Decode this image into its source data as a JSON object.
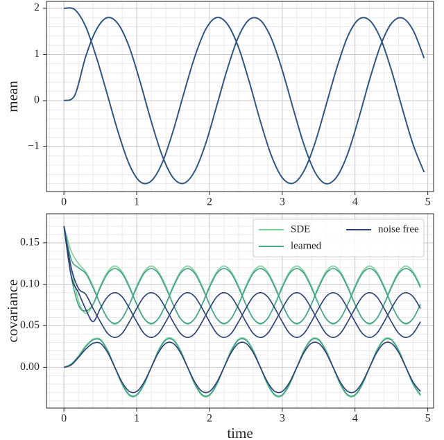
{
  "chart_data": [
    {
      "type": "line",
      "ylabel": "mean",
      "x": [
        0,
        0.15,
        0.3,
        0.45,
        0.6,
        0.75,
        0.9,
        1.05,
        1.2,
        1.35,
        1.5,
        1.65,
        1.8,
        1.95,
        2.1,
        2.25,
        2.4,
        2.55,
        2.7,
        2.85,
        3,
        3.15,
        3.3,
        3.45,
        3.6,
        3.75,
        3.9,
        4.05,
        4.2,
        4.35,
        4.5,
        4.65,
        4.8,
        4.95
      ],
      "series": [
        {
          "color": "#2f5680",
          "values": [
            0,
            0.12,
            0.96,
            1.55,
            1.8,
            1.65,
            1.15,
            0.39,
            -0.45,
            -1.19,
            -1.67,
            -1.79,
            -1.52,
            -0.92,
            -0.11,
            0.71,
            1.39,
            1.76,
            1.74,
            1.35,
            0.66,
            -0.17,
            -0.96,
            -1.55,
            -1.8,
            -1.65,
            -1.15,
            -0.39,
            0.45,
            1.19,
            1.67,
            1.79,
            1.52,
            0.92
          ]
        },
        {
          "color": "#2f5680",
          "values": [
            2,
            1.97,
            1.6,
            0.92,
            0.11,
            -0.71,
            -1.39,
            -1.76,
            -1.74,
            -1.35,
            -0.66,
            0.17,
            0.96,
            1.55,
            1.8,
            1.65,
            1.15,
            0.39,
            -0.45,
            -1.19,
            -1.67,
            -1.79,
            -1.52,
            -0.92,
            -0.11,
            0.71,
            1.39,
            1.76,
            1.74,
            1.35,
            0.66,
            -0.17,
            -0.96,
            -1.55
          ]
        }
      ],
      "xlim": [
        -0.24,
        5.08
      ],
      "xticks": [
        0,
        1,
        2,
        3,
        4,
        5
      ],
      "ylim": [
        -1.97,
        2.15
      ],
      "yticks": [
        {
          "value": -1,
          "label": "−1"
        },
        0,
        1,
        2
      ],
      "grid": true,
      "minor_grid": true
    },
    {
      "type": "line",
      "ylabel": "covariance",
      "xlabel": "time",
      "x": [
        0,
        0.1,
        0.2,
        0.3,
        0.4,
        0.5,
        0.6,
        0.7,
        0.8,
        0.9,
        1,
        1.1,
        1.2,
        1.3,
        1.4,
        1.5,
        1.6,
        1.7,
        1.8,
        1.9,
        2,
        2.1,
        2.2,
        2.3,
        2.4,
        2.5,
        2.6,
        2.7,
        2.8,
        2.9,
        3,
        3.1,
        3.2,
        3.3,
        3.4,
        3.5,
        3.6,
        3.7,
        3.8,
        3.9,
        4,
        4.1,
        4.2,
        4.3,
        4.4,
        4.5,
        4.6,
        4.7,
        4.8,
        4.9
      ],
      "series": [
        {
          "name": "SDE",
          "color": "#7fd09c",
          "values": [
            [
              0.17,
              0.12,
              0.08,
              0.065,
              0.076,
              0.098,
              0.115,
              0.122,
              0.115,
              0.098,
              0.076,
              0.059,
              0.052,
              0.059,
              0.076,
              0.098,
              0.115,
              0.122,
              0.115,
              0.098,
              0.076,
              0.059,
              0.052,
              0.059,
              0.076,
              0.098,
              0.115,
              0.122,
              0.115,
              0.098,
              0.076,
              0.059,
              0.052,
              0.059,
              0.076,
              0.098,
              0.115,
              0.122,
              0.115,
              0.098,
              0.076,
              0.059,
              0.052,
              0.059,
              0.076,
              0.098,
              0.115,
              0.122,
              0.115,
              0.098
            ],
            [
              0.17,
              0.14,
              0.125,
              0.115,
              0.098,
              0.076,
              0.059,
              0.052,
              0.059,
              0.076,
              0.098,
              0.115,
              0.122,
              0.115,
              0.098,
              0.076,
              0.059,
              0.052,
              0.059,
              0.076,
              0.098,
              0.115,
              0.122,
              0.115,
              0.098,
              0.076,
              0.059,
              0.052,
              0.059,
              0.076,
              0.098,
              0.115,
              0.122,
              0.115,
              0.098,
              0.076,
              0.059,
              0.052,
              0.059,
              0.076,
              0.098,
              0.115,
              0.122,
              0.115,
              0.098,
              0.076,
              0.059,
              0.052,
              0.059,
              0.076
            ],
            [
              0,
              0.004,
              0.014,
              0.026,
              0.034,
              0.034,
              0.021,
              0,
              -0.021,
              -0.034,
              -0.034,
              -0.021,
              0,
              0.021,
              0.034,
              0.034,
              0.021,
              0,
              -0.021,
              -0.034,
              -0.034,
              -0.021,
              0,
              0.021,
              0.034,
              0.034,
              0.021,
              0,
              -0.021,
              -0.034,
              -0.034,
              -0.021,
              0,
              0.021,
              0.034,
              0.034,
              0.021,
              0,
              -0.021,
              -0.034,
              -0.034,
              -0.021,
              0,
              0.021,
              0.034,
              0.034,
              0.021,
              0,
              -0.021,
              -0.034
            ]
          ]
        },
        {
          "name": "learned",
          "color": "#48a28e",
          "values": [
            [
              0.17,
              0.11,
              0.075,
              0.068,
              0.076,
              0.096,
              0.113,
              0.119,
              0.113,
              0.096,
              0.076,
              0.059,
              0.053,
              0.059,
              0.076,
              0.096,
              0.113,
              0.119,
              0.113,
              0.096,
              0.076,
              0.059,
              0.053,
              0.059,
              0.076,
              0.096,
              0.113,
              0.119,
              0.113,
              0.096,
              0.076,
              0.059,
              0.053,
              0.059,
              0.076,
              0.096,
              0.113,
              0.119,
              0.113,
              0.096,
              0.076,
              0.059,
              0.053,
              0.059,
              0.076,
              0.096,
              0.113,
              0.119,
              0.113,
              0.096
            ],
            [
              0.17,
              0.13,
              0.12,
              0.113,
              0.096,
              0.076,
              0.059,
              0.053,
              0.059,
              0.076,
              0.096,
              0.113,
              0.119,
              0.113,
              0.096,
              0.076,
              0.059,
              0.053,
              0.059,
              0.076,
              0.096,
              0.113,
              0.119,
              0.113,
              0.096,
              0.076,
              0.059,
              0.053,
              0.059,
              0.076,
              0.096,
              0.113,
              0.119,
              0.113,
              0.096,
              0.076,
              0.059,
              0.053,
              0.059,
              0.076,
              0.096,
              0.113,
              0.119,
              0.113,
              0.096,
              0.076,
              0.059,
              0.053,
              0.059,
              0.076
            ],
            [
              0,
              0.004,
              0.013,
              0.025,
              0.033,
              0.033,
              0.02,
              0,
              -0.02,
              -0.033,
              -0.033,
              -0.02,
              0,
              0.02,
              0.033,
              0.033,
              0.02,
              0,
              -0.02,
              -0.033,
              -0.033,
              -0.02,
              0,
              0.02,
              0.033,
              0.033,
              0.02,
              0,
              -0.02,
              -0.033,
              -0.033,
              -0.02,
              0,
              0.02,
              0.033,
              0.033,
              0.02,
              0,
              -0.02,
              -0.033,
              -0.033,
              -0.02,
              0,
              0.02,
              0.033,
              0.033,
              0.02,
              0,
              -0.02,
              -0.033
            ]
          ]
        },
        {
          "name": "noise free",
          "color": "#2e4475",
          "values": [
            [
              0.17,
              0.11,
              0.09,
              0.07,
              0.055,
              0.071,
              0.085,
              0.09,
              0.085,
              0.071,
              0.055,
              0.041,
              0.036,
              0.041,
              0.055,
              0.071,
              0.085,
              0.09,
              0.085,
              0.071,
              0.055,
              0.041,
              0.036,
              0.041,
              0.055,
              0.071,
              0.085,
              0.09,
              0.085,
              0.071,
              0.055,
              0.041,
              0.036,
              0.041,
              0.055,
              0.071,
              0.085,
              0.09,
              0.085,
              0.071,
              0.055,
              0.041,
              0.036,
              0.041,
              0.055,
              0.071,
              0.085,
              0.09,
              0.085,
              0.071
            ],
            [
              0.17,
              0.12,
              0.095,
              0.088,
              0.071,
              0.055,
              0.041,
              0.036,
              0.041,
              0.055,
              0.071,
              0.085,
              0.09,
              0.085,
              0.071,
              0.055,
              0.041,
              0.036,
              0.041,
              0.055,
              0.071,
              0.085,
              0.09,
              0.085,
              0.071,
              0.055,
              0.041,
              0.036,
              0.041,
              0.055,
              0.071,
              0.085,
              0.09,
              0.085,
              0.071,
              0.055,
              0.041,
              0.036,
              0.041,
              0.055,
              0.071,
              0.085,
              0.09,
              0.085,
              0.071,
              0.055,
              0.041,
              0.036,
              0.041,
              0.055
            ],
            [
              0,
              0.003,
              0.012,
              0.022,
              0.029,
              0.029,
              0.018,
              0,
              -0.018,
              -0.029,
              -0.029,
              -0.018,
              0,
              0.018,
              0.029,
              0.029,
              0.018,
              0,
              -0.018,
              -0.029,
              -0.029,
              -0.018,
              0,
              0.018,
              0.029,
              0.029,
              0.018,
              0,
              -0.018,
              -0.029,
              -0.029,
              -0.018,
              0,
              0.018,
              0.029,
              0.029,
              0.018,
              0,
              -0.018,
              -0.029,
              -0.029,
              -0.018,
              0,
              0.018,
              0.029,
              0.029,
              0.018,
              0,
              -0.018,
              -0.029
            ]
          ]
        }
      ],
      "xlim": [
        -0.24,
        5.08
      ],
      "xticks": [
        0,
        1,
        2,
        3,
        4,
        5
      ],
      "ylim": [
        -0.049,
        0.185
      ],
      "yticks": [
        {
          "value": 0,
          "label": "0.00"
        },
        {
          "value": 0.05,
          "label": "0.05"
        },
        {
          "value": 0.1,
          "label": "0.10"
        },
        {
          "value": 0.15,
          "label": "0.15"
        }
      ],
      "grid": true,
      "minor_grid": true,
      "legend": "upper right"
    }
  ]
}
